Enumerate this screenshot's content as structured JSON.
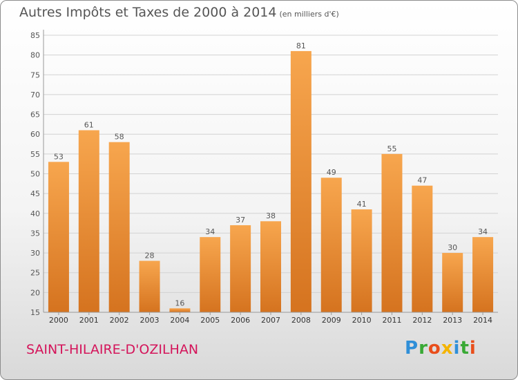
{
  "title": {
    "main": "Autres Impôts et Taxes de 2000 à 2014",
    "unit": "(en milliers d'€)"
  },
  "commune": "SAINT-HILAIRE-D'OZILHAN",
  "logo": {
    "p": "P",
    "r": "r",
    "o": "o",
    "x": "x",
    "i": "i",
    "t": "t",
    "i2": "i"
  },
  "colors": {
    "bar_light": "#f7a64e",
    "bar_dark": "#d5731f",
    "commune": "#d4145a"
  },
  "chart_data": {
    "type": "bar",
    "categories": [
      "2000",
      "2001",
      "2002",
      "2003",
      "2004",
      "2005",
      "2006",
      "2007",
      "2008",
      "2009",
      "2010",
      "2011",
      "2012",
      "2013",
      "2014"
    ],
    "values": [
      53,
      61,
      58,
      28,
      16,
      34,
      37,
      38,
      81,
      49,
      41,
      55,
      47,
      30,
      34
    ],
    "ylim": [
      15,
      85
    ],
    "yticks": [
      15,
      20,
      25,
      30,
      35,
      40,
      45,
      50,
      55,
      60,
      65,
      70,
      75,
      80,
      85
    ],
    "grid": true
  }
}
